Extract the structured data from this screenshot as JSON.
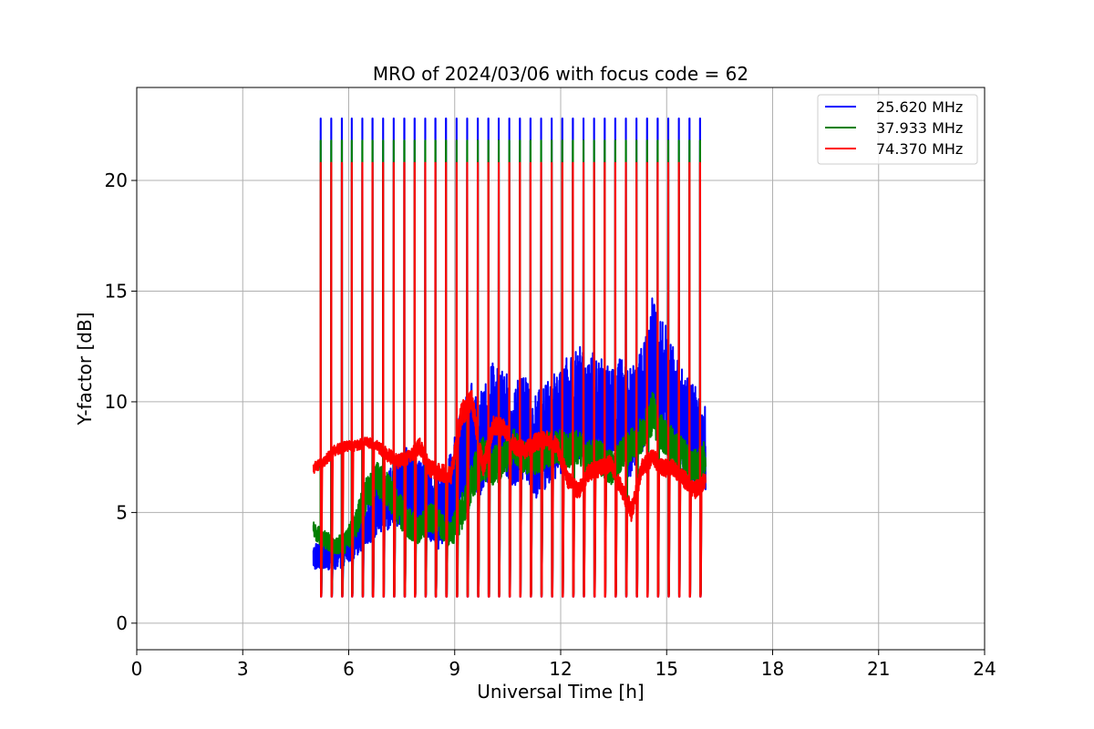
{
  "chart_data": {
    "type": "line",
    "title": "MRO of 2024/03/06 with focus code = 62",
    "xlabel": "Universal Time [h]",
    "ylabel": "Y-factor [dB]",
    "xlim": [
      0,
      24
    ],
    "ylim": [
      -1.2,
      24.2
    ],
    "xticks": [
      0,
      3,
      6,
      9,
      12,
      15,
      18,
      21,
      24
    ],
    "yticks": [
      0,
      5,
      10,
      15,
      20
    ],
    "grid": true,
    "legend_position": "top-right",
    "spike_times": [
      5.2,
      5.5,
      5.8,
      6.08,
      6.38,
      6.67,
      6.97,
      7.27,
      7.57,
      7.86,
      8.16,
      8.45,
      8.75,
      9.05,
      9.35,
      9.65,
      9.95,
      10.24,
      10.54,
      10.84,
      11.14,
      11.44,
      11.74,
      12.04,
      12.34,
      12.64,
      12.94,
      13.24,
      13.54,
      13.84,
      14.14,
      14.44,
      14.74,
      15.04,
      15.34,
      15.64,
      15.94
    ],
    "series": [
      {
        "name": "25.620 MHz",
        "color": "#0000ff",
        "x": [
          5.0,
          5.3,
          5.6,
          5.9,
          6.2,
          6.5,
          6.8,
          7.1,
          7.4,
          7.7,
          8.0,
          8.3,
          8.6,
          8.9,
          9.2,
          9.5,
          9.8,
          10.1,
          10.4,
          10.7,
          11.0,
          11.3,
          11.6,
          11.9,
          12.2,
          12.5,
          12.8,
          13.1,
          13.4,
          13.7,
          14.0,
          14.3,
          14.6,
          14.9,
          15.2,
          15.5,
          15.8,
          16.1
        ],
        "baseline": [
          3.0,
          3.1,
          3.0,
          3.2,
          3.8,
          4.5,
          5.0,
          5.6,
          6.0,
          6.3,
          5.8,
          5.5,
          5.0,
          5.8,
          7.5,
          8.5,
          8.0,
          9.5,
          9.0,
          8.5,
          9.0,
          8.0,
          8.5,
          9.0,
          9.5,
          10.0,
          9.5,
          10.0,
          9.0,
          9.5,
          9.0,
          10.0,
          12.0,
          11.0,
          10.0,
          9.0,
          8.5,
          8.0
        ],
        "noise": [
          0.8,
          0.8,
          0.8,
          0.8,
          1.0,
          1.2,
          1.5,
          1.8,
          2.0,
          2.2,
          2.2,
          2.2,
          2.2,
          2.5,
          3.0,
          3.0,
          3.0,
          3.2,
          3.0,
          3.0,
          3.0,
          3.0,
          3.0,
          3.0,
          3.2,
          3.2,
          3.2,
          3.2,
          3.2,
          3.2,
          3.2,
          3.2,
          3.5,
          3.5,
          3.2,
          3.0,
          2.8,
          2.5
        ],
        "spike_top": 22.8,
        "spike_bottom": 1.2
      },
      {
        "name": "37.933 MHz",
        "color": "#008000",
        "x": [
          5.0,
          5.3,
          5.6,
          5.9,
          6.2,
          6.5,
          6.8,
          7.1,
          7.4,
          7.7,
          8.0,
          8.3,
          8.6,
          8.9,
          9.2,
          9.5,
          9.8,
          10.1,
          10.4,
          10.7,
          11.0,
          11.3,
          11.6,
          11.9,
          12.2,
          12.5,
          12.8,
          13.1,
          13.4,
          13.7,
          14.0,
          14.3,
          14.6,
          14.9,
          15.2,
          15.5,
          15.8,
          16.1
        ],
        "baseline": [
          4.2,
          3.8,
          3.5,
          3.6,
          4.5,
          5.8,
          6.5,
          6.0,
          5.2,
          4.5,
          4.2,
          4.8,
          4.5,
          4.0,
          5.0,
          6.5,
          7.5,
          7.0,
          7.5,
          8.0,
          7.5,
          7.5,
          7.8,
          8.0,
          7.8,
          8.0,
          7.5,
          7.5,
          7.0,
          7.5,
          8.0,
          8.5,
          9.5,
          8.5,
          8.0,
          7.5,
          7.0,
          7.5
        ],
        "noise": [
          0.5,
          0.5,
          0.5,
          0.6,
          0.8,
          1.0,
          1.0,
          1.0,
          1.0,
          0.9,
          0.8,
          0.8,
          0.8,
          0.8,
          1.0,
          1.2,
          1.2,
          1.2,
          1.0,
          1.0,
          1.0,
          1.0,
          1.0,
          1.0,
          1.0,
          1.0,
          1.0,
          1.0,
          1.0,
          1.0,
          1.0,
          1.0,
          1.2,
          1.0,
          1.0,
          1.0,
          1.0,
          1.0
        ],
        "spike_top": 21.8,
        "spike_bottom": 1.3
      },
      {
        "name": "74.370 MHz",
        "color": "#ff0000",
        "x": [
          5.0,
          5.3,
          5.6,
          5.9,
          6.2,
          6.5,
          6.8,
          7.1,
          7.4,
          7.7,
          8.0,
          8.3,
          8.6,
          8.9,
          9.2,
          9.5,
          9.8,
          10.1,
          10.4,
          10.7,
          11.0,
          11.3,
          11.6,
          11.9,
          12.2,
          12.5,
          12.8,
          13.1,
          13.4,
          13.7,
          14.0,
          14.3,
          14.6,
          14.9,
          15.2,
          15.5,
          15.8,
          16.1
        ],
        "baseline": [
          7.0,
          7.3,
          7.8,
          8.0,
          8.0,
          8.2,
          8.0,
          7.6,
          7.3,
          7.5,
          8.0,
          7.0,
          6.8,
          6.7,
          9.5,
          10.0,
          7.0,
          9.0,
          8.8,
          8.0,
          7.8,
          8.2,
          8.3,
          8.0,
          6.5,
          6.0,
          6.8,
          7.0,
          7.2,
          6.2,
          5.0,
          7.0,
          7.5,
          7.0,
          7.0,
          6.5,
          6.0,
          6.5
        ],
        "noise": [
          0.3,
          0.3,
          0.3,
          0.3,
          0.3,
          0.3,
          0.3,
          0.4,
          0.4,
          0.4,
          0.5,
          0.5,
          0.5,
          0.5,
          0.7,
          0.7,
          0.6,
          0.6,
          0.5,
          0.5,
          0.5,
          0.5,
          0.5,
          0.5,
          0.5,
          0.5,
          0.5,
          0.5,
          0.5,
          0.5,
          0.6,
          0.5,
          0.5,
          0.5,
          0.5,
          0.5,
          0.5,
          0.5
        ],
        "spike_top": 20.8,
        "spike_bottom": 1.2
      }
    ]
  }
}
